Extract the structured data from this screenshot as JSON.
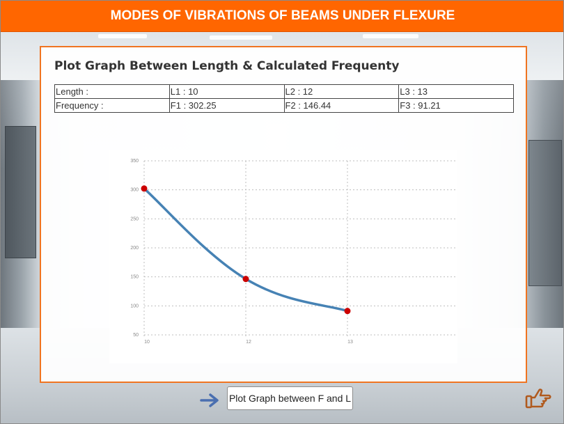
{
  "header": {
    "title": "MODES OF VIBRATIONS OF BEAMS UNDER FLEXURE"
  },
  "panel": {
    "title": "Plot Graph Between Length & Calculated Frequenty",
    "table": [
      [
        "Length :",
        "L1 : 10",
        "L2 : 12",
        "L3 : 13"
      ],
      [
        "Frequency :",
        "F1 : 302.25",
        "F2 : 146.44",
        "F3 : 91.21"
      ]
    ]
  },
  "chart_data": {
    "type": "line",
    "x": [
      10,
      12,
      13
    ],
    "y": [
      302.25,
      146.44,
      91.21
    ],
    "x_ticks": [
      "10",
      "12",
      "13"
    ],
    "y_ticks": [
      "350",
      "300",
      "250",
      "200",
      "150",
      "100",
      "50"
    ],
    "ylim": [
      50,
      350
    ],
    "grid": true,
    "line_color": "#4682b4",
    "point_color": "#cc0000",
    "smooth": true
  },
  "footer": {
    "button_label": "Plot Graph between F and L",
    "arrow_icon": "arrow-right-icon",
    "hand_icon": "hand-pointing-icon",
    "arrow_color": "#4a6fb0",
    "hand_color": "#b05a1e"
  }
}
